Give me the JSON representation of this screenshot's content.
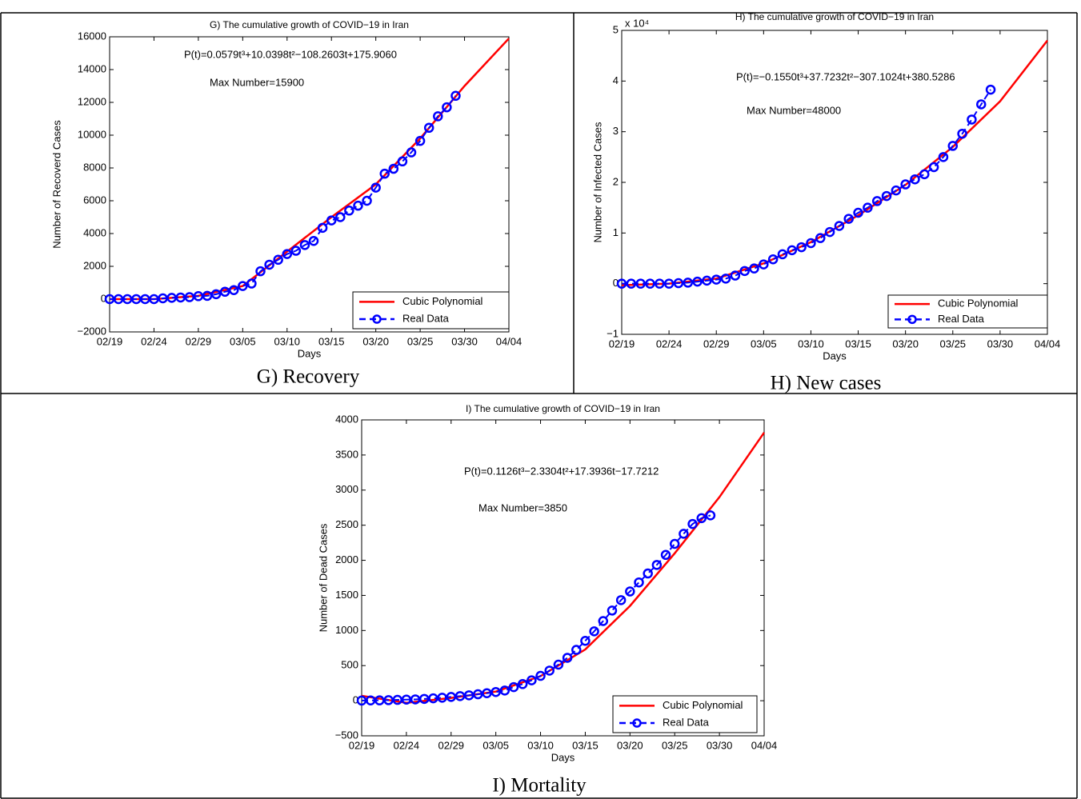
{
  "chart_data": [
    {
      "type": "line",
      "title": "G) The cumulative growth of COVID−19 in Iran",
      "caption": "G)  Recovery",
      "formula": "P(t)=0.0579t³+10.0398t²−108.2603t+175.9060",
      "max_text": "Max Number=15900",
      "x_label": "Days",
      "y_label": "Number of Recoverd Cases",
      "xlim": [
        0,
        45
      ],
      "xticks": [
        {
          "value": 0,
          "label": "02/19"
        },
        {
          "value": 5,
          "label": "02/24"
        },
        {
          "value": 10,
          "label": "02/29"
        },
        {
          "value": 15,
          "label": "03/05"
        },
        {
          "value": 20,
          "label": "03/10"
        },
        {
          "value": 25,
          "label": "03/15"
        },
        {
          "value": 30,
          "label": "03/20"
        },
        {
          "value": 35,
          "label": "03/25"
        },
        {
          "value": 40,
          "label": "03/30"
        },
        {
          "value": 45,
          "label": "04/04"
        }
      ],
      "ylim": [
        -2000,
        16000
      ],
      "yticks": [
        {
          "value": -2000,
          "label": "−2000"
        },
        0,
        2000,
        4000,
        6000,
        8000,
        10000,
        12000,
        14000,
        16000
      ],
      "legend": "lower right",
      "series": [
        {
          "name": "Cubic Polynomial",
          "color": "#ff0000",
          "x": [
            0,
            5,
            10,
            15,
            20,
            25,
            30,
            35,
            40,
            45
          ],
          "values": [
            0,
            0,
            200,
            800,
            2900,
            5000,
            7000,
            9800,
            13000,
            15900
          ]
        },
        {
          "name": "Real Data",
          "color": "#0000ff",
          "x": [
            0,
            1,
            2,
            3,
            4,
            5,
            6,
            7,
            8,
            9,
            10,
            11,
            12,
            13,
            14,
            15,
            16,
            17,
            18,
            19,
            20,
            21,
            22,
            23,
            24,
            25,
            26,
            27,
            28,
            29,
            30,
            31,
            32,
            33,
            34,
            35,
            36,
            37,
            38,
            39
          ],
          "values": [
            0,
            0,
            0,
            0,
            0,
            0,
            50,
            80,
            100,
            120,
            180,
            200,
            300,
            450,
            550,
            800,
            950,
            1700,
            2100,
            2400,
            2750,
            2950,
            3300,
            3550,
            4350,
            4800,
            5000,
            5400,
            5700,
            6000,
            6800,
            7650,
            7950,
            8400,
            8950,
            9650,
            10450,
            11150,
            11700,
            12400
          ]
        }
      ]
    },
    {
      "type": "line",
      "title": "H) The cumulative growth of COVID−19 in Iran",
      "caption": "H)  New cases",
      "formula": "P(t)=−0.1550t³+37.7232t²−307.1024t+380.5286",
      "max_text": "Max Number=48000",
      "x_label": "Days",
      "y_label": "Number of Infected Cases",
      "y_multiplier": "x 10⁴",
      "xlim": [
        0,
        45
      ],
      "xticks": [
        {
          "value": 0,
          "label": "02/19"
        },
        {
          "value": 5,
          "label": "02/24"
        },
        {
          "value": 10,
          "label": "02/29"
        },
        {
          "value": 15,
          "label": "03/05"
        },
        {
          "value": 20,
          "label": "03/10"
        },
        {
          "value": 25,
          "label": "03/15"
        },
        {
          "value": 30,
          "label": "03/20"
        },
        {
          "value": 35,
          "label": "03/25"
        },
        {
          "value": 40,
          "label": "03/30"
        },
        {
          "value": 45,
          "label": "04/04"
        }
      ],
      "ylim": [
        -1,
        5
      ],
      "yticks": [
        {
          "value": -1,
          "label": "−1"
        },
        0,
        1,
        2,
        3,
        4,
        5
      ],
      "legend": "lower right",
      "series": [
        {
          "name": "Cubic Polynomial",
          "color": "#ff0000",
          "x": [
            0,
            5,
            10,
            15,
            20,
            25,
            30,
            35,
            40,
            45
          ],
          "values": [
            -0.03,
            0,
            0.1,
            0.4,
            0.82,
            1.35,
            1.95,
            2.7,
            3.6,
            4.8
          ]
        },
        {
          "name": "Real Data",
          "color": "#0000ff",
          "x": [
            0,
            1,
            2,
            3,
            4,
            5,
            6,
            7,
            8,
            9,
            10,
            11,
            12,
            13,
            14,
            15,
            16,
            17,
            18,
            19,
            20,
            21,
            22,
            23,
            24,
            25,
            26,
            27,
            28,
            29,
            30,
            31,
            32,
            33,
            34,
            35,
            36,
            37,
            38,
            39
          ],
          "values": [
            0,
            0,
            0,
            0,
            0,
            0,
            0.01,
            0.02,
            0.04,
            0.06,
            0.08,
            0.1,
            0.16,
            0.25,
            0.3,
            0.38,
            0.48,
            0.58,
            0.66,
            0.72,
            0.8,
            0.9,
            1.02,
            1.14,
            1.28,
            1.4,
            1.5,
            1.63,
            1.73,
            1.84,
            1.96,
            2.06,
            2.16,
            2.3,
            2.5,
            2.72,
            2.96,
            3.24,
            3.54,
            3.83
          ]
        }
      ]
    },
    {
      "type": "line",
      "title": "I) The cumulative growth of COVID−19 in Iran",
      "caption": "I)    Mortality",
      "formula": "P(t)=0.1126t³−2.3304t²+17.3936t−17.7212",
      "max_text": "Max Number=3850",
      "x_label": "Days",
      "y_label": "Number of Dead Cases",
      "xlim": [
        0,
        45
      ],
      "xticks": [
        {
          "value": 0,
          "label": "02/19"
        },
        {
          "value": 5,
          "label": "02/24"
        },
        {
          "value": 10,
          "label": "02/29"
        },
        {
          "value": 15,
          "label": "03/05"
        },
        {
          "value": 20,
          "label": "03/10"
        },
        {
          "value": 25,
          "label": "03/15"
        },
        {
          "value": 30,
          "label": "03/20"
        },
        {
          "value": 35,
          "label": "03/25"
        },
        {
          "value": 40,
          "label": "03/30"
        },
        {
          "value": 45,
          "label": "04/04"
        }
      ],
      "ylim": [
        -500,
        4000
      ],
      "yticks": [
        {
          "value": -500,
          "label": "−500"
        },
        0,
        500,
        1000,
        1500,
        2000,
        2500,
        3000,
        3500,
        4000
      ],
      "legend": "lower right",
      "series": [
        {
          "name": "Cubic Polynomial",
          "color": "#ff0000",
          "x": [
            0,
            5,
            10,
            15,
            20,
            25,
            30,
            35,
            40,
            45
          ],
          "values": [
            70,
            -30,
            40,
            130,
            350,
            730,
            1350,
            2100,
            2900,
            3820
          ]
        },
        {
          "name": "Real Data",
          "color": "#0000ff",
          "x": [
            0,
            1,
            2,
            3,
            4,
            5,
            6,
            7,
            8,
            9,
            10,
            11,
            12,
            13,
            14,
            15,
            16,
            17,
            18,
            19,
            20,
            21,
            22,
            23,
            24,
            25,
            26,
            27,
            28,
            29,
            30,
            31,
            32,
            33,
            34,
            35,
            36,
            37,
            38,
            39
          ],
          "values": [
            2,
            4,
            5,
            8,
            12,
            16,
            19,
            26,
            34,
            43,
            54,
            66,
            77,
            92,
            107,
            124,
            145,
            194,
            237,
            291,
            354,
            429,
            514,
            611,
            724,
            853,
            988,
            1135,
            1284,
            1433,
            1556,
            1685,
            1812,
            1934,
            2077,
            2234,
            2378,
            2517,
            2600,
            2640
          ]
        }
      ]
    }
  ]
}
